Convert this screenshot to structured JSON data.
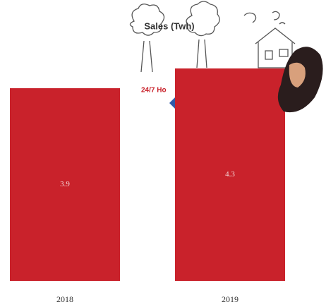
{
  "chart_data": {
    "type": "bar",
    "title": "Sales (Twh)",
    "annotation": "24/7 Ho",
    "categories": [
      "2018",
      "2019"
    ],
    "values": [
      3.9,
      4.3
    ],
    "color": "#c9222b",
    "ylim": [
      0,
      5
    ]
  }
}
